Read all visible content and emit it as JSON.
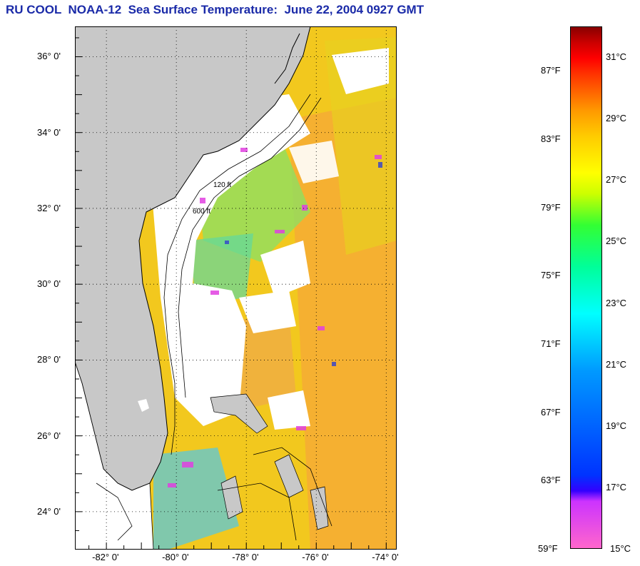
{
  "title": "RU COOL  NOAA-12  Sea Surface Temperature:  June 22, 2004 0927 GMT",
  "map": {
    "lat_labels": [
      {
        "lat": 36,
        "text": "36° 0'"
      },
      {
        "lat": 34,
        "text": "34° 0'"
      },
      {
        "lat": 32,
        "text": "32° 0'"
      },
      {
        "lat": 30,
        "text": "30° 0'"
      },
      {
        "lat": 28,
        "text": "28° 0'"
      },
      {
        "lat": 26,
        "text": "26° 0'"
      },
      {
        "lat": 24,
        "text": "24° 0'"
      }
    ],
    "lon_labels": [
      {
        "lon": -82,
        "text": "-82° 0'"
      },
      {
        "lon": -80,
        "text": "-80° 0'"
      },
      {
        "lon": -78,
        "text": "-78° 0'"
      },
      {
        "lon": -76,
        "text": "-76° 0'"
      },
      {
        "lon": -74,
        "text": "-74° 0'"
      }
    ],
    "lat_range": [
      23,
      36.8
    ],
    "lon_range": [
      -82.9,
      -73.7
    ],
    "isobaths": [
      "120 ft",
      "600 ft"
    ],
    "colors": {
      "land": "#c8c8c8",
      "cloud": "#ffffff",
      "coast": "#000000"
    }
  },
  "colorbar": {
    "fahrenheit": [
      "87°F",
      "83°F",
      "79°F",
      "75°F",
      "71°F",
      "67°F",
      "63°F",
      "59°F"
    ],
    "celsius": [
      "31°C",
      "29°C",
      "27°C",
      "25°C",
      "23°C",
      "21°C",
      "19°C",
      "17°C",
      "15°C"
    ],
    "range_c": [
      15,
      32
    ]
  }
}
